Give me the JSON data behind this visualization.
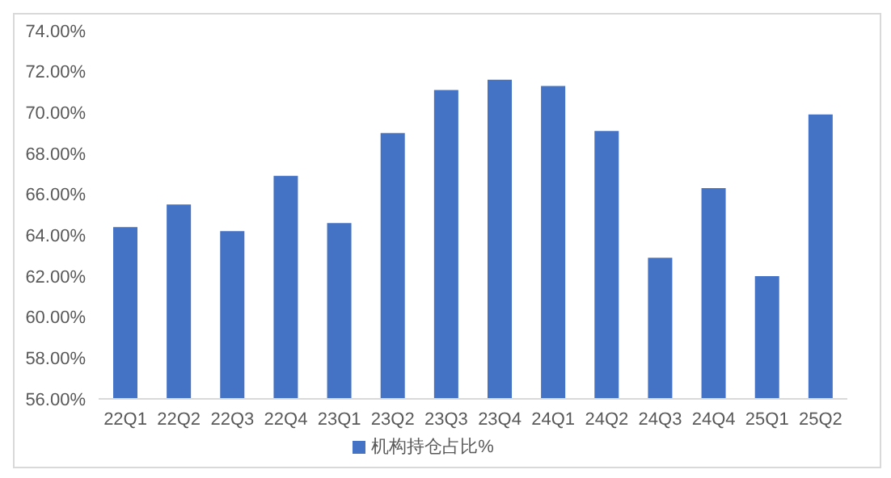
{
  "chart_data": {
    "type": "bar",
    "categories": [
      "22Q1",
      "22Q2",
      "22Q3",
      "22Q4",
      "23Q1",
      "23Q2",
      "23Q3",
      "23Q4",
      "24Q1",
      "24Q2",
      "24Q3",
      "24Q4",
      "25Q1",
      "25Q2"
    ],
    "series": [
      {
        "name": "机构持仓占比%",
        "color": "#4472c4",
        "values": [
          64.4,
          65.5,
          64.2,
          66.9,
          64.6,
          69.0,
          71.1,
          71.6,
          71.3,
          69.1,
          62.9,
          66.3,
          62.0,
          69.9
        ]
      }
    ],
    "ylim": [
      56,
      74
    ],
    "yticks": [
      {
        "value": 56,
        "label": "56.00%"
      },
      {
        "value": 58,
        "label": "58.00%"
      },
      {
        "value": 60,
        "label": "60.00%"
      },
      {
        "value": 62,
        "label": "62.00%"
      },
      {
        "value": 64,
        "label": "64.00%"
      },
      {
        "value": 66,
        "label": "66.00%"
      },
      {
        "value": 68,
        "label": "68.00%"
      },
      {
        "value": 70,
        "label": "70.00%"
      },
      {
        "value": 72,
        "label": "72.00%"
      },
      {
        "value": 74,
        "label": "74.00%"
      }
    ],
    "grid": false,
    "legend": "bottom"
  }
}
